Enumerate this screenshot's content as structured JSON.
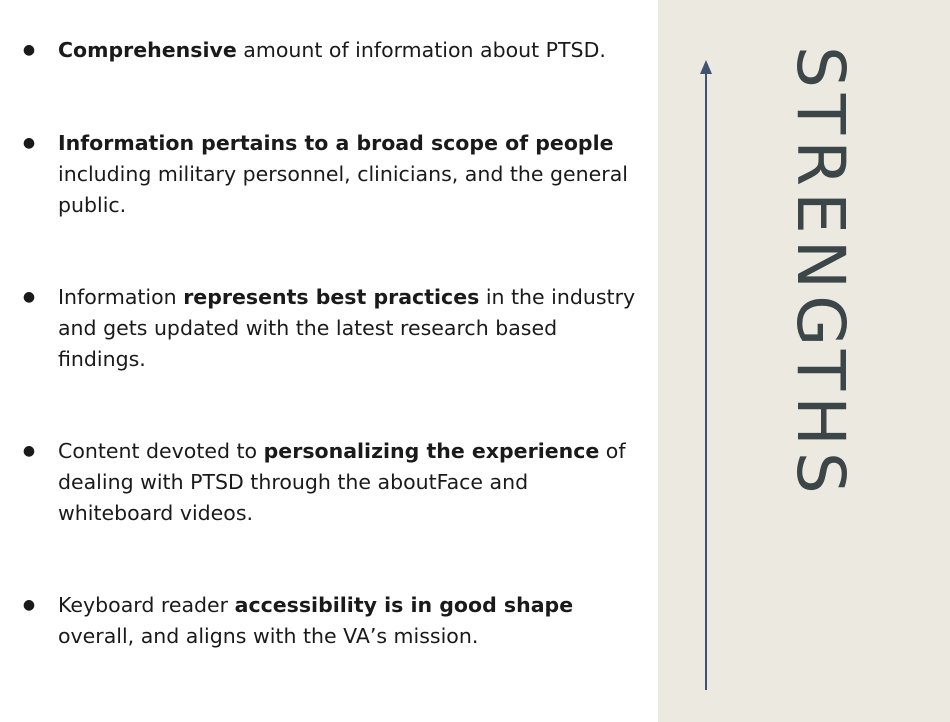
{
  "bullets": [
    {
      "segments": [
        {
          "text": "Comprehensive",
          "bold": true
        },
        {
          "text": " amount of information about PTSD.",
          "bold": false
        }
      ]
    },
    {
      "segments": [
        {
          "text": "Information pertains to a broad scope of people",
          "bold": true
        },
        {
          "text": " including military personnel, clinicians, and the general public.",
          "bold": false
        }
      ]
    },
    {
      "segments": [
        {
          "text": "Information ",
          "bold": false
        },
        {
          "text": "represents best practices",
          "bold": true
        },
        {
          "text": " in the industry and gets updated with the latest research based findings.",
          "bold": false
        }
      ]
    },
    {
      "segments": [
        {
          "text": "Content devoted to ",
          "bold": false
        },
        {
          "text": "personalizing the experience",
          "bold": true
        },
        {
          "text": " of dealing with PTSD through the aboutFace and whiteboard videos.",
          "bold": false
        }
      ]
    },
    {
      "segments": [
        {
          "text": "Keyboard reader ",
          "bold": false
        },
        {
          "text": "accessibility is in good shape",
          "bold": true
        },
        {
          "text": " overall, and aligns with the VA’s mission.",
          "bold": false
        }
      ]
    }
  ],
  "bullet_symbol": "●",
  "side_title": "STRENGTHS",
  "colors": {
    "panel_background": "#eceae0",
    "arrow": "#3e5470",
    "title": "#3c4648"
  }
}
